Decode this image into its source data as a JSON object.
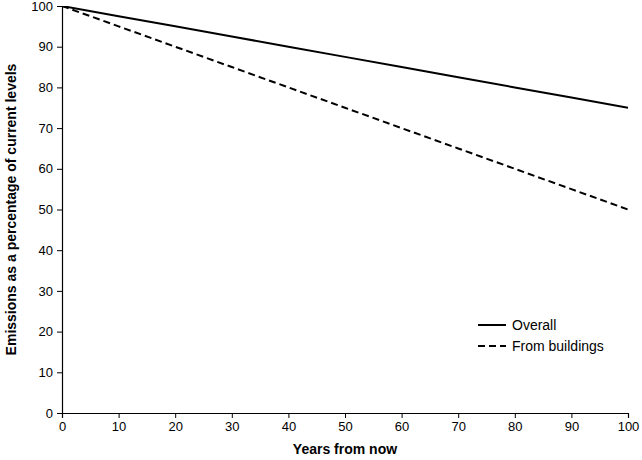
{
  "chart_data": {
    "type": "line",
    "x_label": "Years from now",
    "y_label": "Emissions as a percentage of current levels",
    "x": [
      0,
      10,
      20,
      30,
      40,
      50,
      60,
      70,
      80,
      90,
      100
    ],
    "series": [
      {
        "name": "Overall",
        "color": "#000000",
        "line_style": "solid",
        "values": [
          100,
          97.5,
          95,
          92.5,
          90,
          87.5,
          85,
          82.5,
          80,
          77.5,
          75
        ]
      },
      {
        "name": "From buildings",
        "color": "#000000",
        "line_style": "dashed",
        "values": [
          100,
          95,
          90,
          85,
          80,
          75,
          70,
          65,
          60,
          55,
          50
        ]
      }
    ],
    "xlim": [
      0,
      100
    ],
    "xticks": [
      0,
      10,
      20,
      30,
      40,
      50,
      60,
      70,
      80,
      90,
      100
    ],
    "ylim": [
      0,
      100
    ],
    "yticks": [
      0,
      10,
      20,
      30,
      40,
      50,
      60,
      70,
      80,
      90,
      100
    ],
    "grid": false,
    "legend": "lower right"
  }
}
